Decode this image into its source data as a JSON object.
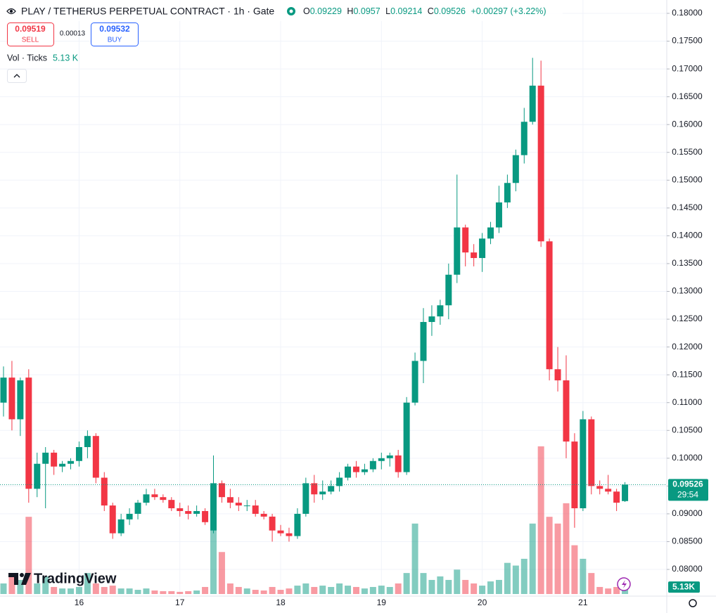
{
  "chart_data": {
    "type": "candlestick",
    "title": "PLAY / TETHERUS PERPETUAL CONTRACT · 1h · Gate",
    "ohlc_labels": [
      "O",
      "H",
      "L",
      "C"
    ],
    "change_label": "+0.00297 (+3.22%)",
    "sell_price": {
      "value": 0.09519,
      "label": "0.09519"
    },
    "sell_label": "SELL",
    "spread": 0.00013,
    "buy_price": 0.09532,
    "buy_label": "BUY",
    "volume_title": "Vol · Ticks",
    "volume_value_label": "5.13 K",
    "volume_axis_label": "5.13K",
    "countdown": "29:54",
    "logo": "TradingView",
    "up_color": "#089981",
    "down_color": "#f23645",
    "grid": true,
    "categories": [
      null,
      null,
      null,
      null,
      null,
      null,
      null,
      null,
      null,
      "16",
      null,
      null,
      null,
      null,
      null,
      null,
      null,
      null,
      null,
      null,
      null,
      "17",
      null,
      null,
      null,
      null,
      null,
      null,
      null,
      null,
      null,
      null,
      null,
      "18",
      null,
      null,
      null,
      null,
      null,
      null,
      null,
      null,
      null,
      null,
      null,
      "19",
      null,
      null,
      null,
      null,
      null,
      null,
      null,
      null,
      null,
      null,
      null,
      "20",
      null,
      null,
      null,
      null,
      null,
      null,
      null,
      null,
      null,
      null,
      null,
      "21",
      null,
      null,
      null,
      null,
      null
    ],
    "open": [
      0.11,
      0.1145,
      0.107,
      0.1145,
      0.0945,
      0.099,
      0.101,
      0.0985,
      0.099,
      0.0995,
      0.102,
      0.104,
      0.0965,
      0.0915,
      0.0865,
      0.089,
      0.09,
      0.092,
      0.0935,
      0.093,
      0.0925,
      0.091,
      0.0905,
      0.09,
      0.0905,
      0.087,
      0.0955,
      0.093,
      0.092,
      0.0915,
      0.0915,
      0.09,
      0.0895,
      0.087,
      0.0865,
      0.086,
      0.09,
      0.0955,
      0.0935,
      0.094,
      0.095,
      0.0965,
      0.0985,
      0.0975,
      0.098,
      0.0995,
      0.1,
      0.1005,
      0.0975,
      0.11,
      0.1175,
      0.1245,
      0.1255,
      0.1275,
      0.133,
      0.1415,
      0.137,
      0.136,
      0.1395,
      0.1415,
      0.146,
      0.1495,
      0.1545,
      0.1605,
      0.167,
      0.139,
      0.116,
      0.114,
      0.103,
      0.091,
      0.107,
      0.095,
      0.0945,
      0.094,
      0.09229
    ],
    "high": [
      0.1165,
      0.1175,
      0.1145,
      0.116,
      0.101,
      0.102,
      0.1015,
      0.0995,
      0.1,
      0.103,
      0.105,
      0.1045,
      0.0975,
      0.092,
      0.09,
      0.091,
      0.0925,
      0.0945,
      0.0945,
      0.0935,
      0.093,
      0.092,
      0.0915,
      0.0915,
      0.091,
      0.1005,
      0.096,
      0.0945,
      0.093,
      0.0925,
      0.0925,
      0.0905,
      0.09,
      0.088,
      0.0875,
      0.091,
      0.0965,
      0.097,
      0.096,
      0.096,
      0.0975,
      0.099,
      0.0995,
      0.099,
      0.1,
      0.101,
      0.101,
      0.1015,
      0.111,
      0.119,
      0.127,
      0.1275,
      0.1285,
      0.135,
      0.151,
      0.142,
      0.1385,
      0.1405,
      0.1425,
      0.149,
      0.151,
      0.1555,
      0.163,
      0.172,
      0.1715,
      0.1395,
      0.12,
      0.1185,
      0.1045,
      0.1085,
      0.1075,
      0.096,
      0.097,
      0.0945,
      0.0957
    ],
    "low": [
      0.1075,
      0.105,
      0.104,
      0.092,
      0.093,
      0.091,
      0.097,
      0.0975,
      0.098,
      0.0985,
      0.1,
      0.0955,
      0.0905,
      0.0855,
      0.086,
      0.088,
      0.089,
      0.0915,
      0.0925,
      0.092,
      0.0905,
      0.0895,
      0.089,
      0.0895,
      0.088,
      0.0865,
      0.092,
      0.091,
      0.0905,
      0.0905,
      0.0895,
      0.089,
      0.085,
      0.086,
      0.085,
      0.0855,
      0.0895,
      0.092,
      0.0925,
      0.0935,
      0.094,
      0.096,
      0.0965,
      0.097,
      0.0975,
      0.098,
      0.0985,
      0.0965,
      0.097,
      0.1095,
      0.1135,
      0.122,
      0.124,
      0.125,
      0.1315,
      0.1345,
      0.1345,
      0.1335,
      0.1385,
      0.1405,
      0.145,
      0.148,
      0.153,
      0.16,
      0.138,
      0.114,
      0.112,
      0.1,
      0.0875,
      0.0905,
      0.0935,
      0.0935,
      0.0935,
      0.0905,
      0.09214
    ],
    "close": [
      0.1145,
      0.107,
      0.114,
      0.0945,
      0.099,
      0.101,
      0.0985,
      0.099,
      0.0995,
      0.102,
      0.104,
      0.0965,
      0.0915,
      0.0865,
      0.089,
      0.09,
      0.092,
      0.0935,
      0.093,
      0.0925,
      0.091,
      0.0905,
      0.09,
      0.0905,
      0.0885,
      0.0955,
      0.093,
      0.092,
      0.0915,
      0.0915,
      0.09,
      0.0895,
      0.087,
      0.0865,
      0.086,
      0.09,
      0.0955,
      0.0935,
      0.094,
      0.095,
      0.0965,
      0.0985,
      0.0975,
      0.098,
      0.0995,
      0.1,
      0.1005,
      0.0975,
      0.11,
      0.1175,
      0.1245,
      0.1255,
      0.1275,
      0.133,
      0.1415,
      0.137,
      0.136,
      0.1395,
      0.1415,
      0.146,
      0.1495,
      0.1545,
      0.1605,
      0.167,
      0.139,
      0.116,
      0.114,
      0.103,
      0.091,
      0.107,
      0.095,
      0.0945,
      0.094,
      0.092,
      0.09526
    ],
    "volume": [
      7.8,
      15.5,
      10.4,
      57,
      7.8,
      13,
      5.2,
      4.1,
      4.1,
      5.2,
      15.5,
      7.8,
      5.2,
      6.2,
      4.1,
      4.1,
      3.1,
      4.1,
      2.6,
      2.1,
      2.1,
      1.6,
      2.1,
      2.6,
      5.2,
      57,
      31,
      7.8,
      5.2,
      4.1,
      3.1,
      2.6,
      5.2,
      3.1,
      4.1,
      6.2,
      7.8,
      5.2,
      6.2,
      5.2,
      7.8,
      6.2,
      5.2,
      4.1,
      5.2,
      6.2,
      5.2,
      7.8,
      15.5,
      52,
      15.5,
      10.4,
      13,
      10.4,
      18,
      10.4,
      7.8,
      6.2,
      9.3,
      10.4,
      23,
      21,
      26,
      52,
      109,
      57,
      52,
      67,
      36,
      26,
      15.5,
      5.2,
      4.1,
      5.2,
      5.13
    ],
    "vlim": [
      0,
      110
    ],
    "ylim": [
      0.0752,
      0.1824
    ],
    "yticks": [
      {
        "value": 0.08,
        "label": "0.08000"
      },
      {
        "value": 0.085,
        "label": "0.08500"
      },
      {
        "value": 0.09,
        "label": "0.09000"
      },
      {
        "value": 0.095,
        "label": "0.09500"
      },
      {
        "value": 0.1,
        "label": "0.10000"
      },
      {
        "value": 0.105,
        "label": "0.10500"
      },
      {
        "value": 0.11,
        "label": "0.11000"
      },
      {
        "value": 0.115,
        "label": "0.11500"
      },
      {
        "value": 0.12,
        "label": "0.12000"
      },
      {
        "value": 0.125,
        "label": "0.12500"
      },
      {
        "value": 0.13,
        "label": "0.13000"
      },
      {
        "value": 0.135,
        "label": "0.13500"
      },
      {
        "value": 0.14,
        "label": "0.14000"
      },
      {
        "value": 0.145,
        "label": "0.14500"
      },
      {
        "value": 0.15,
        "label": "0.15000"
      },
      {
        "value": 0.155,
        "label": "0.15500"
      },
      {
        "value": 0.16,
        "label": "0.16000"
      },
      {
        "value": 0.165,
        "label": "0.16500"
      },
      {
        "value": 0.17,
        "label": "0.17000"
      },
      {
        "value": 0.175,
        "label": "0.17500"
      },
      {
        "value": 0.18,
        "label": "0.18000"
      }
    ]
  }
}
